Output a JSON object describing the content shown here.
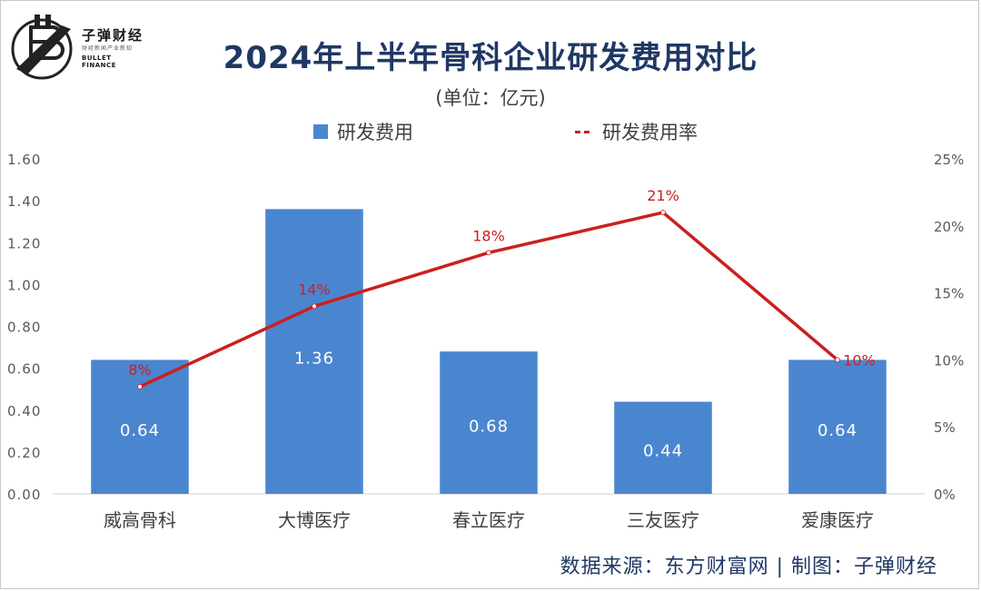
{
  "brand": {
    "name_cn": "子弹财经",
    "tagline": "财经新闻产业新知",
    "name_en": "BULLET FINANCE"
  },
  "header": {
    "title": "2024年上半年骨科企业研发费用对比",
    "subtitle": "(单位：亿元)"
  },
  "legend": {
    "bar_label": "研发费用",
    "line_label": "研发费用率"
  },
  "footer": {
    "source": "数据来源：东方财富网  |  制图：子弹财经"
  },
  "colors": {
    "bar": "#4a86d0",
    "line": "#cc1f1f",
    "title": "#1f3864"
  },
  "chart_data": {
    "type": "bar",
    "title": "2024年上半年骨科企业研发费用对比",
    "subtitle": "(单位：亿元)",
    "categories": [
      "威高骨科",
      "大博医疗",
      "春立医疗",
      "三友医疗",
      "爱康医疗"
    ],
    "series": [
      {
        "name": "研发费用",
        "type": "bar",
        "axis": "left",
        "values": [
          0.64,
          1.36,
          0.68,
          0.44,
          0.64
        ],
        "value_labels": [
          "0.64",
          "1.36",
          "0.68",
          "0.44",
          "0.64"
        ]
      },
      {
        "name": "研发费用率",
        "type": "line",
        "axis": "right",
        "values": [
          8,
          14,
          18,
          21,
          10
        ],
        "value_labels": [
          "8%",
          "14%",
          "18%",
          "21%",
          "10%"
        ]
      }
    ],
    "y_left": {
      "min": 0,
      "max": 1.6,
      "ticks": [
        0,
        0.2,
        0.4,
        0.6,
        0.8,
        1.0,
        1.2,
        1.4,
        1.6
      ],
      "tick_labels": [
        "0.00",
        "0.20",
        "0.40",
        "0.60",
        "0.80",
        "1.00",
        "1.20",
        "1.40",
        "1.60"
      ]
    },
    "y_right": {
      "min": 0,
      "max": 25,
      "ticks": [
        0,
        5,
        10,
        15,
        20,
        25
      ],
      "tick_labels": [
        "0%",
        "5%",
        "10%",
        "15%",
        "20%",
        "25%"
      ]
    },
    "grid": false,
    "legend_position": "top-center"
  }
}
